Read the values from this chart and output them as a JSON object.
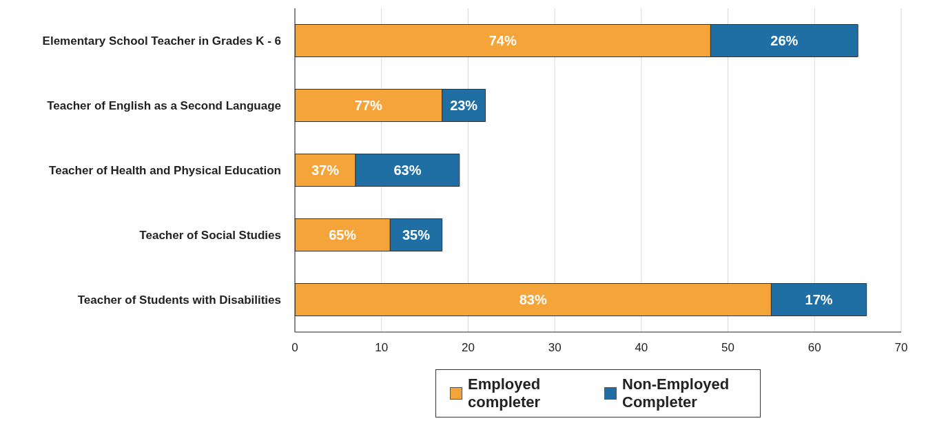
{
  "chart_data": {
    "type": "bar",
    "orientation": "horizontal",
    "stacked": true,
    "categories": [
      "Elementary School Teacher in Grades K - 6",
      "Teacher of English as a Second Language",
      "Teacher of Health and Physical Education",
      "Teacher of Social Studies",
      "Teacher of Students with Disabilities"
    ],
    "series": [
      {
        "name": "Employed completer",
        "color": "#f5a43a",
        "values": [
          48,
          17,
          7,
          11,
          55
        ]
      },
      {
        "name": "Non-Employed Completer",
        "color": "#1f6fa5",
        "values": [
          17,
          5,
          12,
          6,
          11
        ]
      }
    ],
    "annotations": [
      "74%",
      "26%",
      "77%",
      "23%",
      "37%",
      "63%",
      "65%",
      "35%",
      "83%",
      "17%"
    ],
    "xlim": [
      0,
      70
    ],
    "xticks": [
      0,
      10,
      20,
      30,
      40,
      50,
      60,
      70
    ],
    "grid": "x",
    "legend": "bottom"
  }
}
